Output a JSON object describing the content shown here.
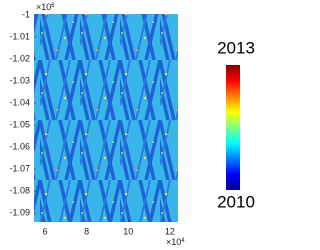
{
  "chart_data": {
    "type": "image",
    "ylim": [
      -1.094,
      -0.9996
    ],
    "yticks": [
      -1,
      -1.01,
      -1.02,
      -1.03,
      -1.04,
      -1.05,
      -1.06,
      -1.07,
      -1.08,
      -1.09
    ],
    "y_exponent_label": {
      "base": "×10",
      "exponent": "6"
    },
    "xlim": [
      5.47,
      12.39
    ],
    "xticks": [
      6,
      8,
      10,
      12
    ],
    "x_exponent_label": {
      "base": "×10",
      "exponent": "4"
    },
    "colorbar": {
      "clim": [
        2010,
        2013
      ],
      "ticks": [
        2010,
        2013
      ],
      "colormap": "jet"
    }
  }
}
